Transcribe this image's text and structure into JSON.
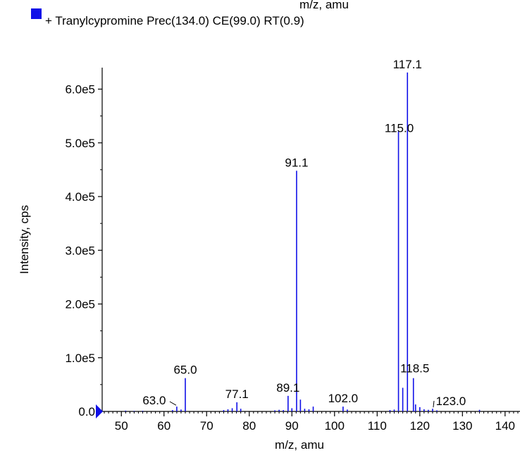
{
  "legend": {
    "cut_text": "m/z, amu",
    "entry": "+ Tranylcypromine Prec(134.0) CE(99.0) RT(0.9)",
    "swatch_color": "#1010e8"
  },
  "chart_data": {
    "type": "bar",
    "subtype": "mass-spectrum-stick",
    "title": "",
    "xlabel": "m/z, amu",
    "ylabel": "Intensity, cps",
    "xlim": [
      45.5,
      143.5
    ],
    "ylim": [
      0,
      640000
    ],
    "x_ticks": [
      50,
      60,
      70,
      80,
      90,
      100,
      110,
      120,
      130,
      140
    ],
    "x_tick_labels": [
      "50",
      "60",
      "70",
      "80",
      "90",
      "100",
      "110",
      "120",
      "130",
      "140"
    ],
    "y_ticks": [
      0,
      100000,
      200000,
      300000,
      400000,
      500000,
      600000
    ],
    "y_tick_labels": [
      "0.0",
      "1.0e5",
      "2.0e5",
      "3.0e5",
      "4.0e5",
      "5.0e5",
      "6.0e5"
    ],
    "grid": false,
    "series_color": "#1010e8",
    "peaks": [
      {
        "x": 51.0,
        "y": 1500
      },
      {
        "x": 53.0,
        "y": 1000
      },
      {
        "x": 55.0,
        "y": 1200
      },
      {
        "x": 62.0,
        "y": 2500
      },
      {
        "x": 63.0,
        "y": 9000,
        "label": "63.0"
      },
      {
        "x": 64.0,
        "y": 3500
      },
      {
        "x": 65.0,
        "y": 62000,
        "label": "65.0"
      },
      {
        "x": 74.0,
        "y": 2500
      },
      {
        "x": 75.0,
        "y": 4000
      },
      {
        "x": 76.0,
        "y": 6000
      },
      {
        "x": 77.1,
        "y": 17000,
        "label": "77.1"
      },
      {
        "x": 78.0,
        "y": 5000
      },
      {
        "x": 86.0,
        "y": 2000
      },
      {
        "x": 87.0,
        "y": 3000
      },
      {
        "x": 88.0,
        "y": 2500
      },
      {
        "x": 89.1,
        "y": 29000,
        "label": "89.1"
      },
      {
        "x": 90.0,
        "y": 6000
      },
      {
        "x": 91.1,
        "y": 448000,
        "label": "91.1"
      },
      {
        "x": 92.0,
        "y": 22000
      },
      {
        "x": 93.0,
        "y": 5000
      },
      {
        "x": 94.0,
        "y": 4000
      },
      {
        "x": 95.0,
        "y": 9000
      },
      {
        "x": 102.0,
        "y": 9000,
        "label": "102.0"
      },
      {
        "x": 103.0,
        "y": 3500
      },
      {
        "x": 113.0,
        "y": 2500
      },
      {
        "x": 114.0,
        "y": 3500
      },
      {
        "x": 115.0,
        "y": 521000,
        "label": "115.0"
      },
      {
        "x": 116.0,
        "y": 44000
      },
      {
        "x": 117.1,
        "y": 631000,
        "label": "117.1"
      },
      {
        "x": 118.5,
        "y": 62000,
        "label": "118.5"
      },
      {
        "x": 119.0,
        "y": 13000
      },
      {
        "x": 120.0,
        "y": 8000
      },
      {
        "x": 121.0,
        "y": 4000
      },
      {
        "x": 122.0,
        "y": 3000
      },
      {
        "x": 123.0,
        "y": 5000,
        "label": "123.0"
      },
      {
        "x": 124.0,
        "y": 2000
      },
      {
        "x": 134.0,
        "y": 3000
      }
    ]
  }
}
